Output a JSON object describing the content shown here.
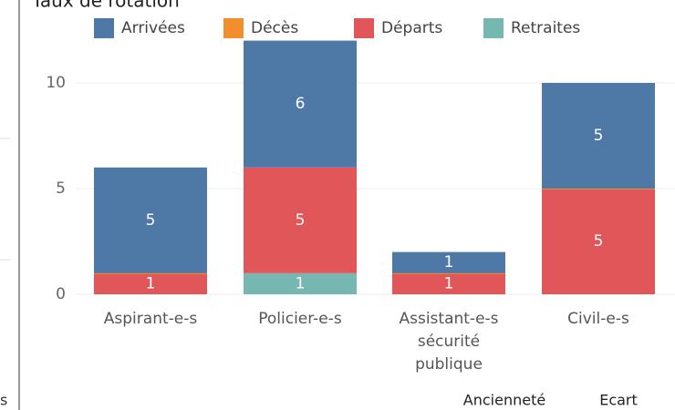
{
  "chart_data": {
    "type": "stacked_bar",
    "title": "Taux de rotation",
    "categories": [
      "Aspirant-e-s",
      "Policier-e-s",
      "Assistant-e-s sécurité publique",
      "Civil-e-s"
    ],
    "stack_order": [
      3,
      2,
      1,
      0
    ],
    "series": [
      {
        "name": "Arrivées",
        "color": "#4e79a7",
        "values": [
          5,
          6,
          1,
          5
        ]
      },
      {
        "name": "Décès",
        "color": "#f28e2b",
        "values": [
          0,
          null,
          0,
          0
        ]
      },
      {
        "name": "Départs",
        "color": "#e15759",
        "values": [
          1,
          5,
          1,
          5
        ]
      },
      {
        "name": "Retraites",
        "color": "#76b7b2",
        "values": [
          null,
          1,
          null,
          null
        ]
      }
    ],
    "ylim": [
      0,
      12
    ],
    "yticks": [
      0,
      5,
      10
    ],
    "grid": true,
    "legend": "top"
  },
  "footer_labels": [
    "Ancienneté",
    "Ecart"
  ],
  "side_text": "s"
}
